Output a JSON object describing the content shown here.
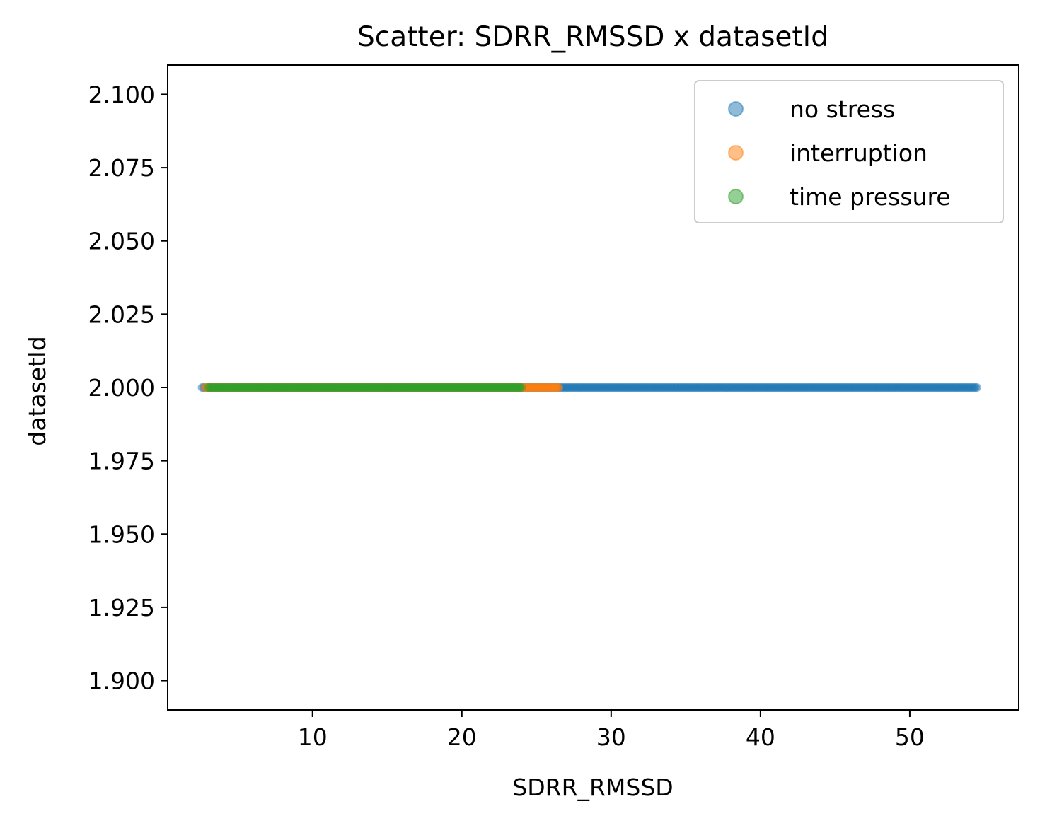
{
  "chart_data": {
    "type": "scatter",
    "title": "Scatter: SDRR_RMSSD x datasetId",
    "xlabel": "SDRR_RMSSD",
    "ylabel": "datasetId",
    "xlim": [
      0.3,
      57.3
    ],
    "ylim": [
      1.89,
      2.11
    ],
    "xticks": [
      "10",
      "20",
      "30",
      "40",
      "50"
    ],
    "xtick_values": [
      10,
      20,
      30,
      40,
      50
    ],
    "yticks": [
      "1.900",
      "1.925",
      "1.950",
      "1.975",
      "2.000",
      "2.025",
      "2.050",
      "2.075",
      "2.100"
    ],
    "ytick_values": [
      1.9,
      1.925,
      1.95,
      1.975,
      2.0,
      2.025,
      2.05,
      2.075,
      2.1
    ],
    "grid": false,
    "legend_position": "top-right",
    "series": [
      {
        "name": "no stress",
        "color": "#1f77b4",
        "x_range": [
          2.6,
          54.5
        ],
        "y": 2.0
      },
      {
        "name": "interruption",
        "color": "#ff7f0e",
        "x_range": [
          2.8,
          26.5
        ],
        "y": 2.0
      },
      {
        "name": "time pressure",
        "color": "#2ca02c",
        "x_range": [
          3.0,
          24.0
        ],
        "y": 2.0
      }
    ]
  }
}
